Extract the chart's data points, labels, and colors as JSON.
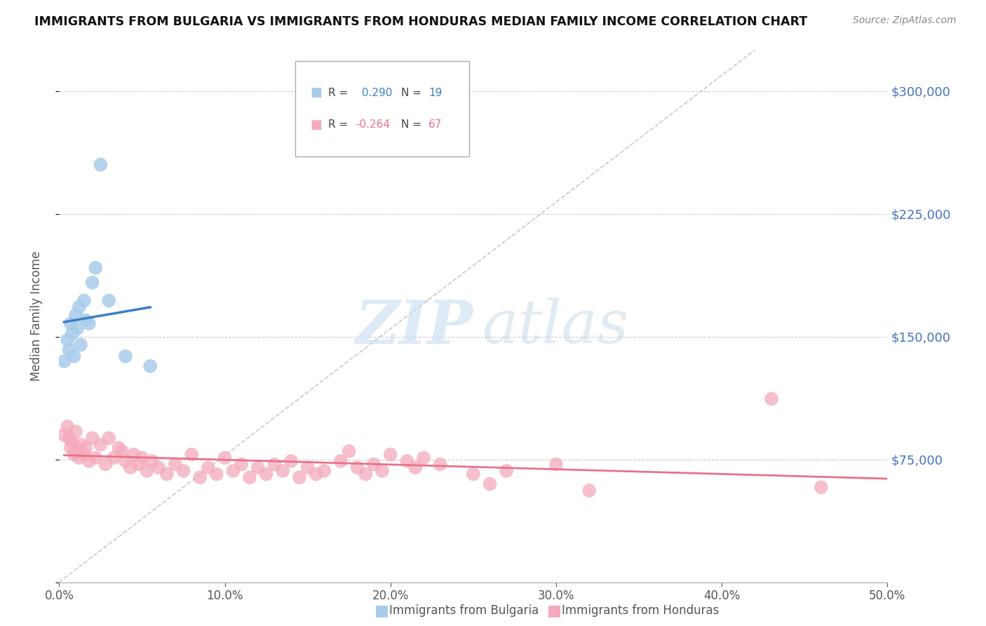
{
  "title": "IMMIGRANTS FROM BULGARIA VS IMMIGRANTS FROM HONDURAS MEDIAN FAMILY INCOME CORRELATION CHART",
  "source": "Source: ZipAtlas.com",
  "ylabel": "Median Family Income",
  "xlim": [
    0.0,
    0.5
  ],
  "ylim": [
    0,
    325000
  ],
  "yticks": [
    0,
    75000,
    150000,
    225000,
    300000
  ],
  "xtick_labels": [
    "0.0%",
    "10.0%",
    "20.0%",
    "30.0%",
    "40.0%",
    "50.0%"
  ],
  "xticks": [
    0.0,
    0.1,
    0.2,
    0.3,
    0.4,
    0.5
  ],
  "bulgaria_color": "#A8CCEA",
  "honduras_color": "#F4AABC",
  "bulgaria_line_color": "#3B7FC4",
  "honduras_line_color": "#E8728A",
  "dashed_line_color": "#BBBBBB",
  "legend_label_bulgaria": "Immigrants from Bulgaria",
  "legend_label_honduras": "Immigrants from Honduras",
  "R_bulgaria": 0.29,
  "N_bulgaria": 19,
  "R_honduras": -0.264,
  "N_honduras": 67,
  "background_color": "#FFFFFF",
  "bulgaria_x": [
    0.003,
    0.005,
    0.006,
    0.007,
    0.008,
    0.009,
    0.01,
    0.011,
    0.012,
    0.013,
    0.015,
    0.016,
    0.018,
    0.02,
    0.022,
    0.025,
    0.03,
    0.04,
    0.055
  ],
  "bulgaria_y": [
    135000,
    148000,
    142000,
    158000,
    152000,
    138000,
    163000,
    155000,
    168000,
    145000,
    172000,
    160000,
    158000,
    183000,
    192000,
    255000,
    172000,
    138000,
    132000
  ],
  "honduras_x": [
    0.003,
    0.005,
    0.006,
    0.007,
    0.008,
    0.009,
    0.01,
    0.011,
    0.012,
    0.013,
    0.015,
    0.016,
    0.018,
    0.02,
    0.022,
    0.025,
    0.028,
    0.03,
    0.033,
    0.036,
    0.038,
    0.04,
    0.043,
    0.045,
    0.048,
    0.05,
    0.053,
    0.056,
    0.06,
    0.065,
    0.07,
    0.075,
    0.08,
    0.085,
    0.09,
    0.095,
    0.1,
    0.105,
    0.11,
    0.115,
    0.12,
    0.125,
    0.13,
    0.135,
    0.14,
    0.145,
    0.15,
    0.155,
    0.16,
    0.17,
    0.175,
    0.18,
    0.185,
    0.19,
    0.195,
    0.2,
    0.21,
    0.215,
    0.22,
    0.23,
    0.25,
    0.26,
    0.27,
    0.3,
    0.32,
    0.43,
    0.46
  ],
  "honduras_y": [
    90000,
    95000,
    88000,
    82000,
    85000,
    78000,
    92000,
    80000,
    76000,
    84000,
    78000,
    82000,
    74000,
    88000,
    76000,
    84000,
    72000,
    88000,
    76000,
    82000,
    80000,
    74000,
    70000,
    78000,
    72000,
    76000,
    68000,
    74000,
    70000,
    66000,
    72000,
    68000,
    78000,
    64000,
    70000,
    66000,
    76000,
    68000,
    72000,
    64000,
    70000,
    66000,
    72000,
    68000,
    74000,
    64000,
    70000,
    66000,
    68000,
    74000,
    80000,
    70000,
    66000,
    72000,
    68000,
    78000,
    74000,
    70000,
    76000,
    72000,
    66000,
    60000,
    68000,
    72000,
    56000,
    112000,
    58000
  ]
}
